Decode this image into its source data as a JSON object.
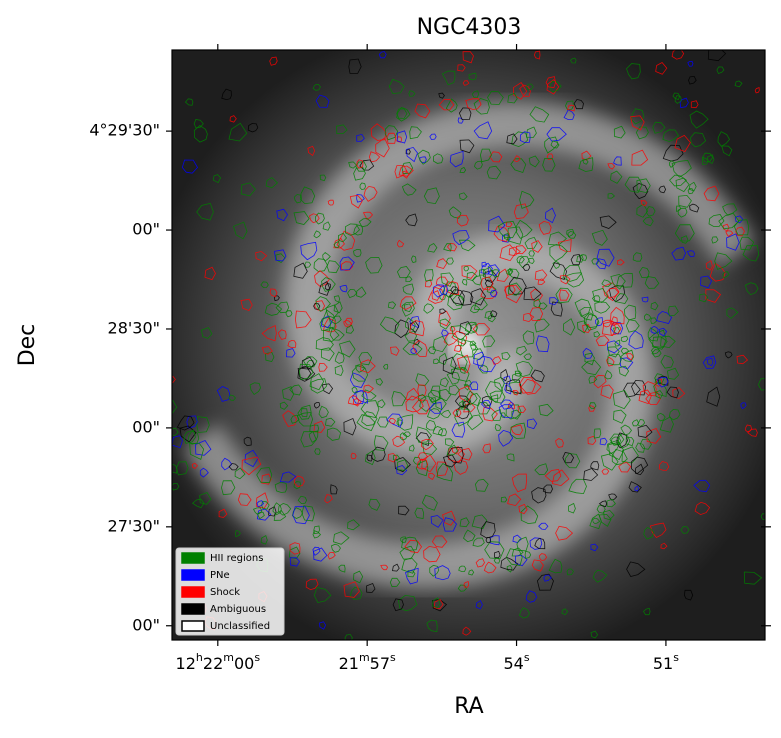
{
  "chart_data": {
    "type": "image",
    "title": "NGC4303",
    "xlabel": "RA",
    "ylabel": "Dec",
    "xlim": [
      44520.92,
      44509.01
    ],
    "ylim": [
      4.4488,
      4.4985
    ],
    "xticks": [
      {
        "value": 44520,
        "label": "12h22m00s"
      },
      {
        "value": 44517,
        "label": "21m57s"
      },
      {
        "value": 44514,
        "label": "54s"
      },
      {
        "value": 44511,
        "label": "51s"
      }
    ],
    "yticks": [
      {
        "value": 4.491667,
        "label": "4°29'30\""
      },
      {
        "value": 4.483333,
        "label": "00\""
      },
      {
        "value": 4.475,
        "label": "28'30\""
      },
      {
        "value": 4.466667,
        "label": "00\""
      },
      {
        "value": 4.458333,
        "label": "27'30\""
      },
      {
        "value": 4.45,
        "label": "00\""
      }
    ],
    "legend": {
      "position": "lower left",
      "entries": [
        {
          "name": "HII regions",
          "color": "#008000",
          "edgecolor": "#008000"
        },
        {
          "name": "PNe",
          "color": "#0000ff",
          "edgecolor": "#0000ff"
        },
        {
          "name": "Shock",
          "color": "#ff0000",
          "edgecolor": "#ff0000"
        },
        {
          "name": "Ambiguous",
          "color": "#000000",
          "edgecolor": "#000000"
        },
        {
          "name": "Unclassified",
          "color": "#ffffff",
          "edgecolor": "#000000"
        }
      ]
    }
  }
}
